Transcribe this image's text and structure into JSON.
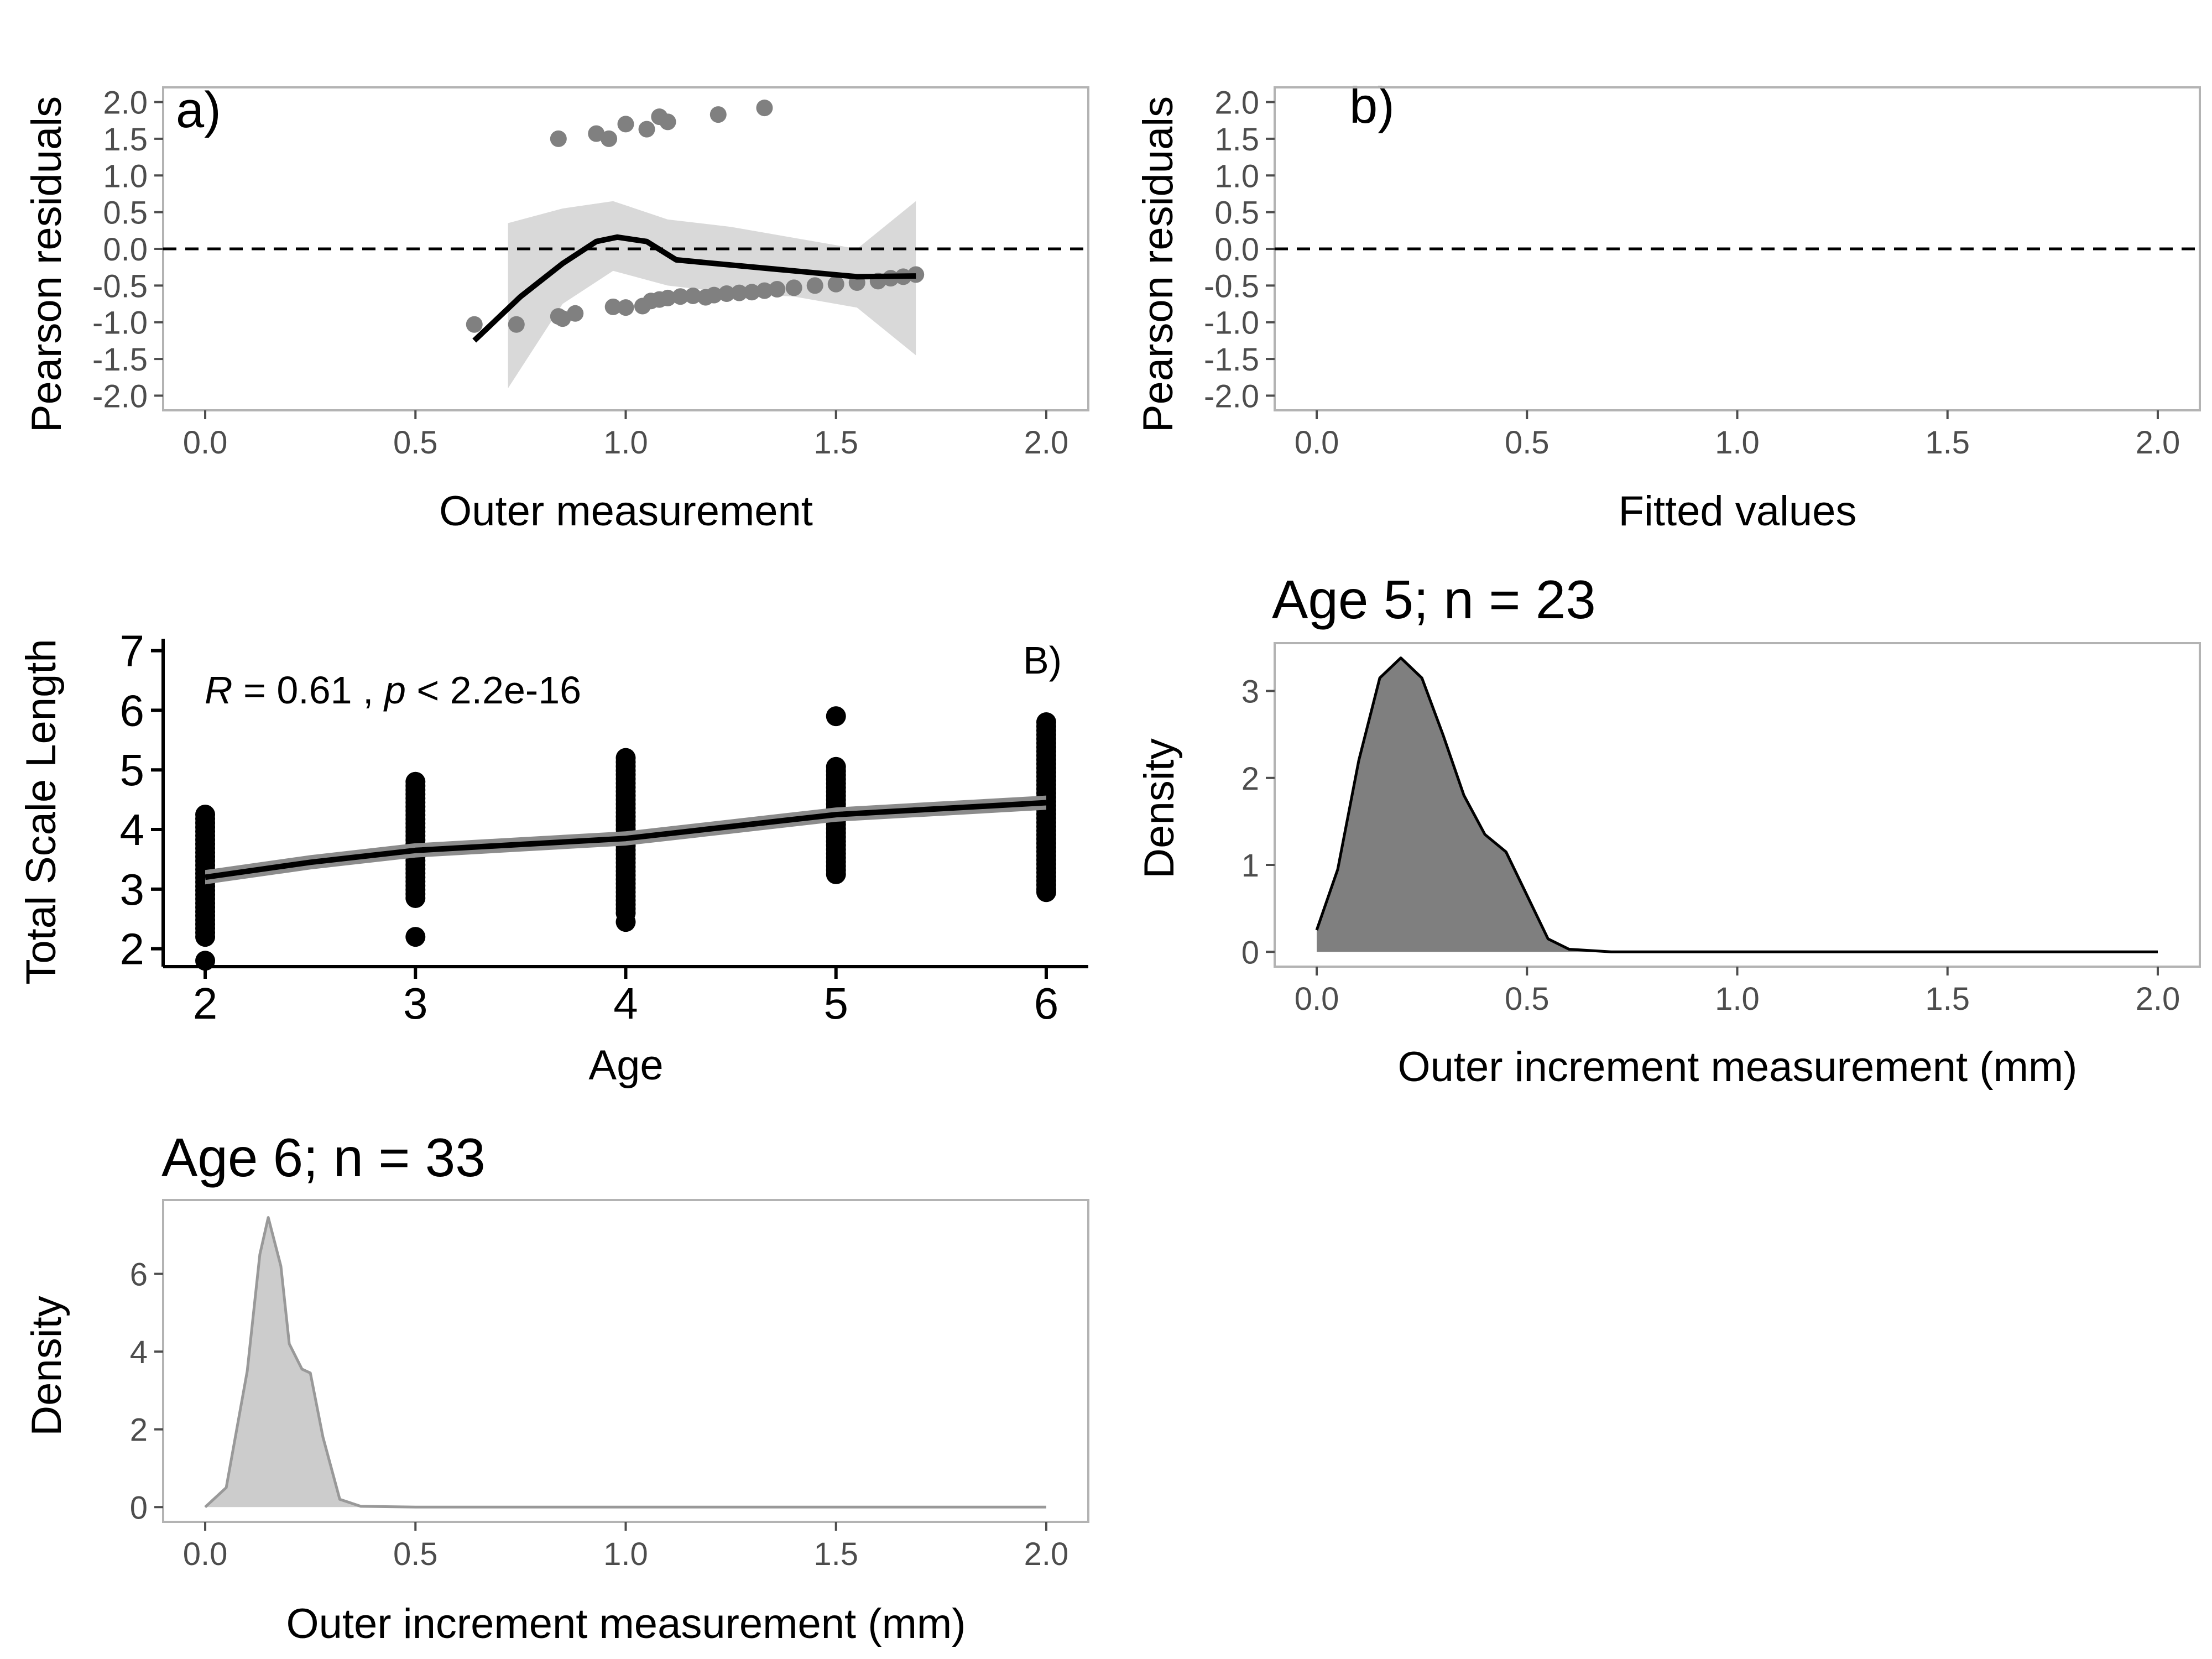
{
  "chart_data": [
    {
      "id": "a",
      "type": "scatter",
      "tag": "a)",
      "xlabel": "Outer measurement",
      "ylabel": "Pearson residuals",
      "xlim": [
        -0.1,
        2.1
      ],
      "ylim": [
        -2.2,
        2.2
      ],
      "xticks": [
        "0.0",
        "0.5",
        "1.0",
        "1.5",
        "2.0"
      ],
      "yticks": [
        "-2.0",
        "-1.5",
        "-1.0",
        "-0.5",
        "0.0",
        "0.5",
        "1.0",
        "1.5",
        "2.0"
      ],
      "grid": false,
      "reference_line_y": 0,
      "points": [
        [
          0.64,
          -1.03
        ],
        [
          0.74,
          -1.03
        ],
        [
          0.84,
          -0.92
        ],
        [
          0.85,
          -0.95
        ],
        [
          0.88,
          -0.88
        ],
        [
          0.97,
          -0.79
        ],
        [
          1.0,
          -0.8
        ],
        [
          1.04,
          -0.78
        ],
        [
          1.06,
          -0.71
        ],
        [
          1.08,
          -0.69
        ],
        [
          1.1,
          -0.67
        ],
        [
          1.13,
          -0.65
        ],
        [
          1.16,
          -0.64
        ],
        [
          1.19,
          -0.66
        ],
        [
          1.21,
          -0.63
        ],
        [
          1.24,
          -0.61
        ],
        [
          1.27,
          -0.6
        ],
        [
          1.3,
          -0.59
        ],
        [
          1.33,
          -0.57
        ],
        [
          1.36,
          -0.55
        ],
        [
          1.4,
          -0.53
        ],
        [
          1.45,
          -0.5
        ],
        [
          1.5,
          -0.48
        ],
        [
          1.55,
          -0.46
        ],
        [
          1.6,
          -0.44
        ],
        [
          1.63,
          -0.4
        ],
        [
          1.66,
          -0.38
        ],
        [
          1.69,
          -0.35
        ],
        [
          0.84,
          1.5
        ],
        [
          0.93,
          1.57
        ],
        [
          0.96,
          1.5
        ],
        [
          1.0,
          1.7
        ],
        [
          1.05,
          1.63
        ],
        [
          1.08,
          1.8
        ],
        [
          1.1,
          1.73
        ],
        [
          1.22,
          1.83
        ],
        [
          1.33,
          1.92
        ]
      ],
      "smooth": [
        [
          0.64,
          -1.25
        ],
        [
          0.75,
          -0.65
        ],
        [
          0.85,
          -0.2
        ],
        [
          0.93,
          0.1
        ],
        [
          0.98,
          0.16
        ],
        [
          1.05,
          0.1
        ],
        [
          1.12,
          -0.15
        ],
        [
          1.25,
          -0.22
        ],
        [
          1.4,
          -0.3
        ],
        [
          1.55,
          -0.38
        ],
        [
          1.69,
          -0.37
        ]
      ],
      "band_upper": [
        [
          0.72,
          0.35
        ],
        [
          0.85,
          0.55
        ],
        [
          0.97,
          0.65
        ],
        [
          1.1,
          0.4
        ],
        [
          1.25,
          0.3
        ],
        [
          1.4,
          0.15
        ],
        [
          1.55,
          0.0
        ],
        [
          1.69,
          0.65
        ]
      ],
      "band_lower": [
        [
          0.72,
          -1.9
        ],
        [
          0.85,
          -0.75
        ],
        [
          0.97,
          -0.3
        ],
        [
          1.1,
          -0.5
        ],
        [
          1.25,
          -0.6
        ],
        [
          1.4,
          -0.65
        ],
        [
          1.55,
          -0.8
        ],
        [
          1.69,
          -1.45
        ]
      ]
    },
    {
      "id": "b",
      "type": "scatter",
      "tag": "b)",
      "xlabel": "Fitted values",
      "ylabel": "Pearson residuals",
      "xlim": [
        -0.1,
        2.1
      ],
      "ylim": [
        -2.2,
        2.2
      ],
      "xticks": [
        "0.0",
        "0.5",
        "1.0",
        "1.5",
        "2.0"
      ],
      "yticks": [
        "-2.0",
        "-1.5",
        "-1.0",
        "-0.5",
        "0.0",
        "0.5",
        "1.0",
        "1.5",
        "2.0"
      ],
      "grid": false,
      "reference_line_y": 0,
      "points": []
    },
    {
      "id": "B",
      "type": "scatter",
      "tag": "B)",
      "xlabel": "Age",
      "ylabel": "Total Scale Length",
      "xlim": [
        1.8,
        6.2
      ],
      "ylim": [
        1.7,
        7.2
      ],
      "xticks": [
        "2",
        "3",
        "4",
        "5",
        "6"
      ],
      "yticks": [
        "2",
        "3",
        "4",
        "5",
        "6",
        "7"
      ],
      "grid": false,
      "annotation": {
        "r_label": "R",
        "r_text": " = 0.61 , ",
        "p_label": "p",
        "p_text": " < 2.2e-16"
      },
      "points_by_age": [
        {
          "age": 2,
          "min": 2.2,
          "max": 4.25,
          "extra": [
            1.8
          ]
        },
        {
          "age": 3,
          "min": 2.85,
          "max": 4.8,
          "extra": [
            2.2
          ]
        },
        {
          "age": 4,
          "min": 2.6,
          "max": 5.2,
          "extra": [
            2.45
          ]
        },
        {
          "age": 5,
          "min": 3.25,
          "max": 5.05,
          "extra": [
            5.9
          ]
        },
        {
          "age": 6,
          "min": 3.0,
          "max": 5.8,
          "extra": [
            2.95
          ]
        }
      ],
      "smooth": [
        [
          2,
          3.2
        ],
        [
          2.5,
          3.45
        ],
        [
          3,
          3.65
        ],
        [
          3.5,
          3.75
        ],
        [
          4,
          3.85
        ],
        [
          4.5,
          4.05
        ],
        [
          5,
          4.25
        ],
        [
          5.5,
          4.35
        ],
        [
          6,
          4.45
        ]
      ]
    },
    {
      "id": "age5",
      "type": "area",
      "title": "Age 5; n = 23",
      "xlabel": "Outer increment measurement (mm)",
      "ylabel": "Density",
      "xlim": [
        -0.1,
        2.1
      ],
      "ylim": [
        -0.17,
        3.55
      ],
      "xticks": [
        "0.0",
        "0.5",
        "1.0",
        "1.5",
        "2.0"
      ],
      "yticks": [
        "0",
        "1",
        "2",
        "3"
      ],
      "grid": false,
      "fill": "#7f7f7f",
      "stroke": "#000000",
      "x": [
        0,
        0.05,
        0.1,
        0.15,
        0.2,
        0.25,
        0.3,
        0.35,
        0.4,
        0.45,
        0.5,
        0.55,
        0.6,
        0.7,
        1.0,
        1.5,
        2.0
      ],
      "y": [
        0.25,
        0.95,
        2.2,
        3.15,
        3.38,
        3.15,
        2.5,
        1.8,
        1.35,
        1.15,
        0.65,
        0.15,
        0.03,
        0.0,
        0.0,
        0.0,
        0.0
      ]
    },
    {
      "id": "age6",
      "type": "area",
      "title": "Age 6; n = 33",
      "xlabel": "Outer increment measurement (mm)",
      "ylabel": "Density",
      "xlim": [
        -0.1,
        2.1
      ],
      "ylim": [
        -0.38,
        7.9
      ],
      "xticks": [
        "0.0",
        "0.5",
        "1.0",
        "1.5",
        "2.0"
      ],
      "yticks": [
        "0",
        "2",
        "4",
        "6"
      ],
      "grid": false,
      "fill": "#cccccc",
      "stroke": "#999999",
      "x": [
        0,
        0.05,
        0.1,
        0.13,
        0.15,
        0.18,
        0.2,
        0.23,
        0.25,
        0.28,
        0.32,
        0.37,
        0.5,
        1.0,
        1.5,
        2.0
      ],
      "y": [
        0.0,
        0.5,
        3.5,
        6.5,
        7.45,
        6.2,
        4.2,
        3.55,
        3.45,
        1.8,
        0.2,
        0.02,
        0.0,
        0.0,
        0.0,
        0.0
      ]
    }
  ]
}
